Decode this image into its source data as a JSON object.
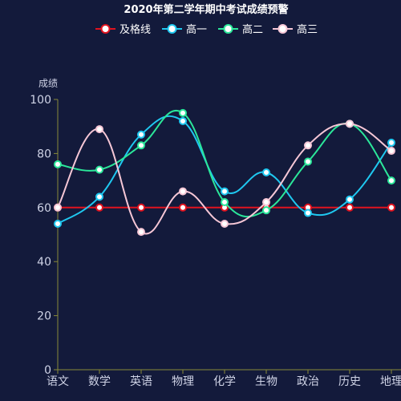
{
  "chart_data": {
    "type": "line",
    "title": "2020年第二学年期中考试成绩预警",
    "ylabel": "成绩",
    "xlabel": "",
    "categories": [
      "语文",
      "数学",
      "英语",
      "物理",
      "化学",
      "生物",
      "政治",
      "历史",
      "地理"
    ],
    "ylim": [
      0,
      100
    ],
    "yticks": [
      0,
      20,
      40,
      60,
      80,
      100
    ],
    "grid": false,
    "legend_position": "top-center",
    "series": [
      {
        "name": "及格线",
        "color": "#e0131f",
        "smooth": false,
        "values": [
          60,
          60,
          60,
          60,
          60,
          60,
          60,
          60,
          60
        ]
      },
      {
        "name": "高一",
        "color": "#1fc8f0",
        "smooth": true,
        "values": [
          54,
          64,
          87,
          92,
          66,
          73,
          58,
          63,
          84
        ]
      },
      {
        "name": "高二",
        "color": "#2be79a",
        "smooth": true,
        "values": [
          76,
          74,
          83,
          95,
          62,
          59,
          77,
          91,
          70
        ]
      },
      {
        "name": "高三",
        "color": "#f6c7d6",
        "smooth": true,
        "values": [
          60,
          89,
          51,
          66,
          54,
          62,
          83,
          91,
          81
        ]
      }
    ]
  },
  "colors": {
    "background": "#131a3b",
    "axis": "#8a8a3a",
    "axis_text": "#cfd3e6",
    "title_text": "#ffffff",
    "legend_text": "#ffffff",
    "marker_fill": "#ffffff"
  }
}
